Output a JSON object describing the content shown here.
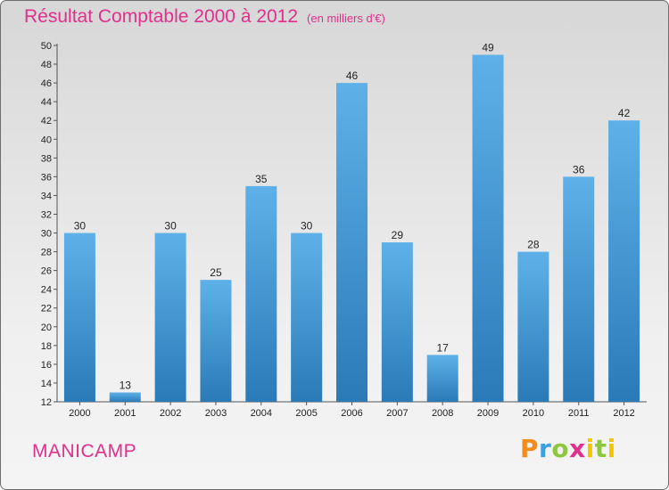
{
  "header": {
    "title": "Résultat Comptable 2000 à 2012",
    "subtitle": "(en milliers d'€)"
  },
  "footer": {
    "commune": "MANICAMP",
    "brand": "Proxiti"
  },
  "colors": {
    "title": "#e0308c",
    "bar_top": "#5eb1e8",
    "bar_bottom": "#2a7ab8"
  },
  "chart_data": {
    "type": "bar",
    "title": "Résultat Comptable 2000 à 2012",
    "subtitle": "(en milliers d'€)",
    "categories": [
      "2000",
      "2001",
      "2002",
      "2003",
      "2004",
      "2005",
      "2006",
      "2007",
      "2008",
      "2009",
      "2010",
      "2011",
      "2012"
    ],
    "values": [
      30,
      13,
      30,
      25,
      35,
      30,
      46,
      29,
      17,
      49,
      28,
      36,
      42
    ],
    "ylim": [
      12,
      50
    ],
    "yticks": [
      12,
      14,
      16,
      18,
      20,
      22,
      24,
      26,
      28,
      30,
      32,
      34,
      36,
      38,
      40,
      42,
      44,
      46,
      48,
      50
    ],
    "grid": false,
    "data_labels": true
  }
}
